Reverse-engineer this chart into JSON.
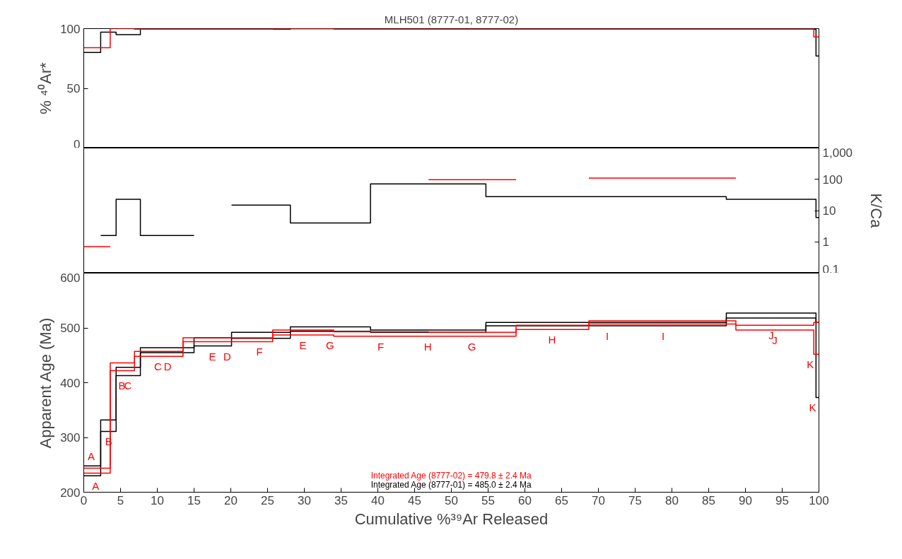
{
  "chart_data": [
    {
      "type": "step",
      "title": "MLH501 (8777-01, 8777-02)",
      "ylabel": "% ⁴⁰Ar*",
      "xlim": [
        0,
        100
      ],
      "ylim": [
        0,
        100
      ],
      "yticks": [
        0,
        50,
        100
      ],
      "tick_labels": "y",
      "series": [
        {
          "color": "#000000",
          "x": [
            0,
            2.3,
            4.4,
            7.7,
            15.0,
            20.1,
            28.1,
            39.0,
            54.7,
            87.4,
            99.6,
            100
          ],
          "values": [
            80,
            97,
            95,
            99.5,
            99.5,
            99.5,
            100,
            99.5,
            99.5,
            99.5,
            77,
            77
          ]
        },
        {
          "color": "#ff0000",
          "x": [
            0,
            3.6,
            6.9,
            13.5,
            25.7,
            34.0,
            46.9,
            58.8,
            68.7,
            88.7,
            99.3,
            100
          ],
          "values": [
            84,
            100,
            99.5,
            99.5,
            100,
            99.5,
            99.5,
            99.5,
            99.5,
            99.5,
            93,
            93
          ]
        }
      ]
    },
    {
      "type": "step",
      "y2label": "K/Ca",
      "xlim": [
        0,
        100
      ],
      "log": "y2",
      "y2lim": [
        0.1,
        1000
      ],
      "y2ticks": [
        0.1,
        1,
        10,
        100,
        {
          "value": 1000,
          "label": "1,000"
        }
      ],
      "tick_labels": "y",
      "series": [
        {
          "color": "#000000",
          "axis": "y2",
          "x": [
            2.3,
            4.4,
            7.7,
            15.0
          ],
          "values": [
            1.6,
            23,
            1.6,
            1.6
          ]
        },
        {
          "color": "#000000",
          "axis": "y2",
          "x": [
            20.1,
            28.1,
            39.0,
            54.7,
            87.4,
            99.6,
            100
          ],
          "values": [
            15,
            4,
            71,
            28,
            23,
            6,
            6
          ]
        },
        {
          "color": "#ff0000",
          "axis": "y2",
          "x": [
            0,
            3.6
          ],
          "values": [
            0.7,
            0.7
          ]
        },
        {
          "color": "#ff0000",
          "axis": "y2",
          "x": [
            46.9,
            58.8
          ],
          "values": [
            97,
            97
          ]
        },
        {
          "color": "#ff0000",
          "axis": "y2",
          "x": [
            68.7,
            88.7
          ],
          "values": [
            110,
            110
          ]
        }
      ]
    },
    {
      "type": "step",
      "xlabel": "Cumulative %³⁹Ar Released",
      "ylabel": "Apparent Age (Ma)",
      "xlim": [
        0,
        100
      ],
      "xticks": [
        0,
        5,
        10,
        15,
        20,
        25,
        30,
        35,
        40,
        45,
        50,
        55,
        60,
        65,
        70,
        75,
        80,
        85,
        90,
        95,
        100
      ],
      "ylim": [
        200,
        600
      ],
      "yticks": [
        200,
        300,
        400,
        500,
        600
      ],
      "series": [
        {
          "color": "#000000",
          "x": [
            0,
            2.3,
            4.4,
            7.7,
            15.0,
            20.1,
            28.1,
            39.0,
            54.7,
            87.4,
            99.6,
            100
          ],
          "values": [
            248,
            332,
            428,
            464,
            482,
            492,
            502,
            496,
            510,
            527,
            510,
            510
          ]
        },
        {
          "color": "#000000",
          "x": [
            0,
            2.3,
            4.4,
            7.7,
            15.0,
            20.1,
            28.1,
            39.0,
            54.7,
            87.4,
            99.6,
            100
          ],
          "values": [
            230,
            311,
            413,
            455,
            467,
            481,
            494,
            492,
            504,
            518,
            373,
            373
          ]
        },
        {
          "color": "#ff0000",
          "x": [
            0,
            3.6,
            6.9,
            13.5,
            25.7,
            34.0,
            46.9,
            58.8,
            68.7,
            88.7,
            99.3,
            100
          ],
          "values": [
            244,
            436,
            457,
            482,
            496,
            493,
            492,
            505,
            513,
            505,
            510,
            510
          ]
        },
        {
          "color": "#ff0000",
          "x": [
            0,
            3.6,
            6.9,
            13.5,
            25.7,
            34.0,
            46.9,
            58.8,
            68.7,
            88.7,
            99.3,
            100
          ],
          "values": [
            235,
            422,
            448,
            475,
            487,
            485,
            485,
            497,
            507,
            496,
            452,
            452
          ]
        }
      ],
      "annotations": [
        "Integrated Age (8777-02) = 479.8 ± 2.4 Ma",
        "Integrated Age (8777-01) = 485.0 ± 2.4 Ma",
        {
          "text": "A",
          "x": 1.0,
          "y": 248
        },
        {
          "text": "A",
          "x": 1.6,
          "y": 230
        },
        {
          "text": "B",
          "x": 3.4,
          "y": 311
        },
        {
          "text": "B",
          "x": 5.2,
          "y": 413
        },
        {
          "text": "C",
          "x": 6.0,
          "y": 413
        },
        {
          "text": "C",
          "x": 10.1,
          "y": 448
        },
        {
          "text": "D",
          "x": 11.4,
          "y": 448
        },
        {
          "text": "E",
          "x": 17.5,
          "y": 467
        },
        {
          "text": "D",
          "x": 19.5,
          "y": 467
        },
        {
          "text": "F",
          "x": 23.9,
          "y": 475
        },
        {
          "text": "E",
          "x": 29.8,
          "y": 487
        },
        {
          "text": "G",
          "x": 33.5,
          "y": 487
        },
        {
          "text": "F",
          "x": 40.4,
          "y": 485
        },
        {
          "text": "H",
          "x": 46.8,
          "y": 485
        },
        {
          "text": "G",
          "x": 52.8,
          "y": 485
        },
        {
          "text": "H",
          "x": 63.7,
          "y": 497
        },
        {
          "text": "I",
          "x": 71.2,
          "y": 504
        },
        {
          "text": "I",
          "x": 78.8,
          "y": 504
        },
        {
          "text": "J",
          "x": 93.5,
          "y": 505
        },
        {
          "text": "J",
          "x": 94.0,
          "y": 496
        },
        {
          "text": "K",
          "x": 99.5,
          "y": 452
        },
        {
          "text": "K",
          "x": 99.8,
          "y": 373
        }
      ]
    }
  ]
}
